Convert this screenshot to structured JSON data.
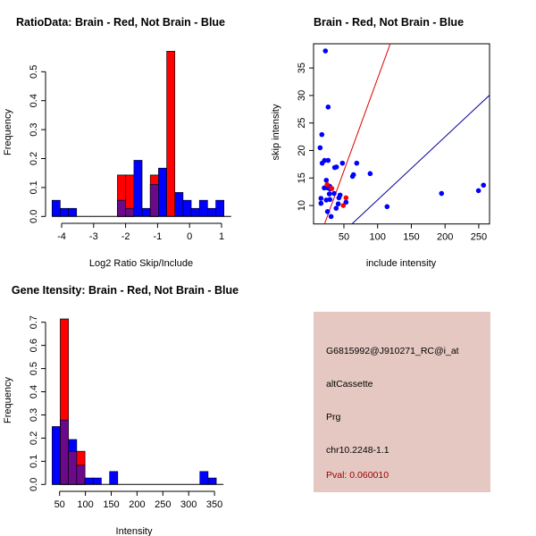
{
  "chart_data": [
    {
      "type": "bar",
      "subtype": "overlaid-histogram",
      "title": "RatioData: Brain - Red, Not Brain - Blue",
      "xlabel": "Log2 Ratio Skip/Include",
      "ylabel": "Frequency",
      "xlim": [
        -4.3,
        1.0
      ],
      "ylim": [
        0,
        0.57
      ],
      "xticks": [
        "-4",
        "-3",
        "-2",
        "-1",
        "0",
        "1"
      ],
      "yticks": [
        "0.0",
        "0.1",
        "0.2",
        "0.3",
        "0.4",
        "0.5"
      ],
      "bin_start": -4.3,
      "bin_width": 0.256,
      "series": [
        {
          "name": "Brain",
          "color": "#ff0000",
          "values": [
            0,
            0,
            0,
            0,
            0,
            0,
            0,
            0,
            0.143,
            0.143,
            0,
            0,
            0.143,
            0,
            0.571,
            0,
            0,
            0,
            0,
            0,
            0
          ]
        },
        {
          "name": "Not Brain",
          "color": "#0000ff",
          "values": [
            0.056,
            0.028,
            0.028,
            0,
            0,
            0,
            0,
            0,
            0.056,
            0.028,
            0.194,
            0.028,
            0.111,
            0.167,
            0,
            0.083,
            0.056,
            0.028,
            0.056,
            0.028,
            0.056
          ]
        }
      ],
      "overlap_color": "#6a0a8a"
    },
    {
      "type": "scatter",
      "title": "Brain - Red, Not Brain - Blue",
      "xlabel": "include intensity",
      "ylabel": "skip intensity",
      "xlim": [
        5,
        266
      ],
      "ylim": [
        6.65,
        39.4
      ],
      "xticks": [
        "50",
        "100",
        "150",
        "200",
        "250"
      ],
      "yticks": [
        "10",
        "15",
        "20",
        "25",
        "30",
        "35"
      ],
      "series": [
        {
          "name": "Not Brain",
          "color": "#0000ff",
          "points": [
            [
              22.6,
              38.1
            ],
            [
              26.6,
              27.9
            ],
            [
              17.3,
              22.9
            ],
            [
              14.7,
              20.5
            ],
            [
              17.8,
              17.7
            ],
            [
              21.3,
              18.2
            ],
            [
              26.6,
              18.2
            ],
            [
              36.3,
              16.9
            ],
            [
              39,
              17.0
            ],
            [
              47.8,
              17.7
            ],
            [
              69,
              17.7
            ],
            [
              62.8,
              15.3
            ],
            [
              64.2,
              15.6
            ],
            [
              88.9,
              15.8
            ],
            [
              23.9,
              14.6
            ],
            [
              20.9,
              13.2
            ],
            [
              26.2,
              13.2
            ],
            [
              28.8,
              13.5
            ],
            [
              29.7,
              13.0
            ],
            [
              35.4,
              12.2
            ],
            [
              28.4,
              12.1
            ],
            [
              44.3,
              11.9
            ],
            [
              42.6,
              11.4
            ],
            [
              16,
              11.3
            ],
            [
              16,
              10.4
            ],
            [
              23.9,
              11.0
            ],
            [
              29.2,
              11.1
            ],
            [
              53.1,
              10.6
            ],
            [
              41.6,
              10.3
            ],
            [
              38.5,
              9.5
            ],
            [
              25.7,
              8.9
            ],
            [
              31,
              8.0
            ],
            [
              114,
              9.8
            ],
            [
              194.8,
              12.2
            ],
            [
              249.6,
              12.7
            ],
            [
              257,
              13.7
            ]
          ]
        },
        {
          "name": "Brain",
          "color": "#ff0000",
          "points": [
            [
              25.2,
              13.8
            ],
            [
              32,
              13.1
            ],
            [
              53.1,
              11.4
            ],
            [
              49.1,
              10.0
            ]
          ]
        }
      ],
      "lines": [
        {
          "name": "Brain fit",
          "color": "#dd0000",
          "slope": 0.336,
          "intercept": -0.5
        },
        {
          "name": "Not Brain fit",
          "color": "#000099",
          "slope": 0.1147,
          "intercept": -0.45
        }
      ]
    },
    {
      "type": "bar",
      "subtype": "overlaid-histogram",
      "title": "Gene Itensity: Brain - Red, Not Brain - Blue",
      "xlabel": "Intensity",
      "ylabel": "Frequency",
      "xlim": [
        35.5,
        355
      ],
      "ylim": [
        0,
        0.72
      ],
      "xticks": [
        "50",
        "100",
        "150",
        "200",
        "250",
        "300",
        "350"
      ],
      "yticks": [
        "0.0",
        "0.1",
        "0.2",
        "0.3",
        "0.4",
        "0.5",
        "0.6",
        "0.7"
      ],
      "bin_start": 35.5,
      "bin_width": 15.9,
      "series": [
        {
          "name": "Brain",
          "color": "#ff0000",
          "values": [
            0,
            0.714,
            0.143,
            0.143,
            0,
            0,
            0,
            0,
            0,
            0,
            0,
            0,
            0,
            0,
            0,
            0,
            0,
            0,
            0,
            0
          ]
        },
        {
          "name": "Not Brain",
          "color": "#0000ff",
          "values": [
            0.25,
            0.278,
            0.194,
            0.083,
            0.028,
            0.028,
            0,
            0.056,
            0,
            0,
            0,
            0,
            0,
            0,
            0,
            0,
            0,
            0,
            0.056,
            0.028
          ]
        }
      ],
      "overlap_color": "#6a0a8a"
    }
  ],
  "info_panel": {
    "probe_id": "G6815992@J910271_RC@i_at",
    "event_type": "altCassette",
    "gene": "Prg",
    "location": "chr10.2248-1.1",
    "pval": "Pval: 0.060010",
    "pval_color": "#990000",
    "background": "#e5c8c1"
  }
}
